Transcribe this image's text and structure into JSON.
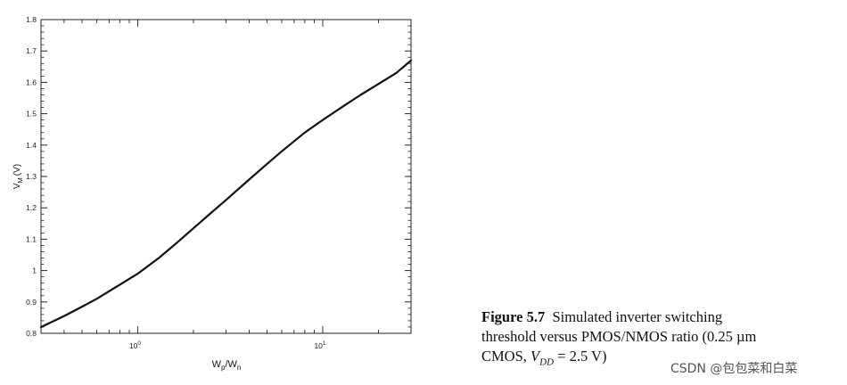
{
  "chart_data": {
    "type": "line",
    "xscale": "log",
    "xlim": [
      0.3,
      30
    ],
    "ylim": [
      0.8,
      1.8
    ],
    "yticks": [
      "0.8",
      "0.9",
      "1",
      "1.1",
      "1.2",
      "1.3",
      "1.4",
      "1.5",
      "1.6",
      "1.7",
      "1.8"
    ],
    "xticks": [
      {
        "value": 1,
        "base": "10",
        "exp": "0"
      },
      {
        "value": 10,
        "base": "10",
        "exp": "1"
      }
    ],
    "ylabel": {
      "main": "V",
      "sub": "M",
      "unit": "(V)"
    },
    "xlabel": {
      "w1": "W",
      "s1": "p",
      "slash": "/",
      "w2": "W",
      "s2": "n"
    },
    "grid": false,
    "series": [
      {
        "x": [
          0.3,
          0.4,
          0.5,
          0.6,
          0.8,
          1.0,
          1.3,
          1.6,
          2.0,
          2.5,
          3.0,
          4.0,
          5.0,
          6.0,
          8.0,
          10.0,
          13.0,
          16.0,
          20.0,
          25.0,
          30.0
        ],
        "y": [
          0.82,
          0.855,
          0.885,
          0.91,
          0.955,
          0.99,
          1.04,
          1.085,
          1.135,
          1.185,
          1.225,
          1.29,
          1.34,
          1.38,
          1.44,
          1.48,
          1.525,
          1.56,
          1.595,
          1.63,
          1.67
        ]
      }
    ]
  },
  "caption": {
    "figure_number": "Figure 5.7",
    "line1": "Simulated inverter switching",
    "line2": "threshold versus PMOS/NMOS ratio (0.25 µm",
    "line3_start": "CMOS,",
    "vdd_symbol": "V",
    "vdd_sub": "DD",
    "line3_end": "= 2.5 V)"
  },
  "watermark": "CSDN @包包菜和白菜"
}
